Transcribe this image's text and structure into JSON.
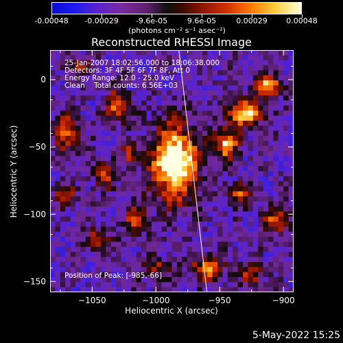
{
  "colorbar": {
    "labels": [
      "-0.00048",
      "-0.00029",
      "-9.6e-05",
      "9.6e-05",
      "0.00029",
      "0.00048"
    ],
    "unit": "(photons cm⁻² s⁻¹ asec⁻²)"
  },
  "annotations": {
    "line1": "25-Jan-2007 18:02:56.000 to 18:06:38.000",
    "line2": "Detectors: 3F 4F 5F 6F 7F 8F, Att 0",
    "line3": "Energy Range: 12.0 - 25.0 keV",
    "line4": "Clean    Total counts: 6.56E+03",
    "peak": "Position of Peak: [-985,-66]"
  },
  "footer": {
    "timestamp": "5-May-2022 15:25"
  },
  "chart_data": {
    "type": "heatmap",
    "title": "Reconstructed RHESSI Image",
    "xlabel": "Heliocentric X (arcsec)",
    "ylabel": "Heliocentric Y (arcsec)",
    "xlim": [
      -1083,
      -892
    ],
    "ylim": [
      -158,
      22
    ],
    "x_ticks": [
      -1050,
      -1000,
      -950,
      -900
    ],
    "y_ticks": [
      0,
      -50,
      -100,
      -150
    ],
    "colorbar_range": [
      -0.00048,
      0.00048
    ],
    "limb_line": [
      [
        -982,
        22
      ],
      [
        -960,
        -158
      ]
    ],
    "sources": [
      {
        "x": -985,
        "y": -62,
        "rx": 18,
        "ry": 28,
        "peak": 1.0
      },
      {
        "x": -930,
        "y": -25,
        "rx": 14,
        "ry": 10,
        "peak": 0.75
      },
      {
        "x": -912,
        "y": -5,
        "rx": 10,
        "ry": 8,
        "peak": 0.8
      },
      {
        "x": -945,
        "y": -48,
        "rx": 10,
        "ry": 12,
        "peak": 0.65
      },
      {
        "x": -1070,
        "y": -40,
        "rx": 10,
        "ry": 14,
        "peak": 0.55
      },
      {
        "x": -1030,
        "y": -20,
        "rx": 9,
        "ry": 12,
        "peak": 0.6
      },
      {
        "x": -1040,
        "y": -70,
        "rx": 8,
        "ry": 10,
        "peak": 0.55
      },
      {
        "x": -1072,
        "y": -85,
        "rx": 8,
        "ry": 8,
        "peak": 0.5
      },
      {
        "x": -1015,
        "y": -105,
        "rx": 8,
        "ry": 10,
        "peak": 0.55
      },
      {
        "x": -1045,
        "y": -120,
        "rx": 10,
        "ry": 8,
        "peak": 0.5
      },
      {
        "x": -960,
        "y": -140,
        "rx": 14,
        "ry": 10,
        "peak": 0.55
      },
      {
        "x": -1000,
        "y": -140,
        "rx": 10,
        "ry": 8,
        "peak": 0.45
      },
      {
        "x": -905,
        "y": -105,
        "rx": 10,
        "ry": 10,
        "peak": 0.55
      },
      {
        "x": -925,
        "y": -145,
        "rx": 10,
        "ry": 8,
        "peak": 0.45
      },
      {
        "x": -1060,
        "y": 10,
        "rx": 8,
        "ry": 6,
        "peak": 0.4
      },
      {
        "x": -935,
        "y": -85,
        "rx": 10,
        "ry": 8,
        "peak": 0.5
      },
      {
        "x": -1020,
        "y": -55,
        "rx": 6,
        "ry": 8,
        "peak": 0.45
      }
    ]
  }
}
